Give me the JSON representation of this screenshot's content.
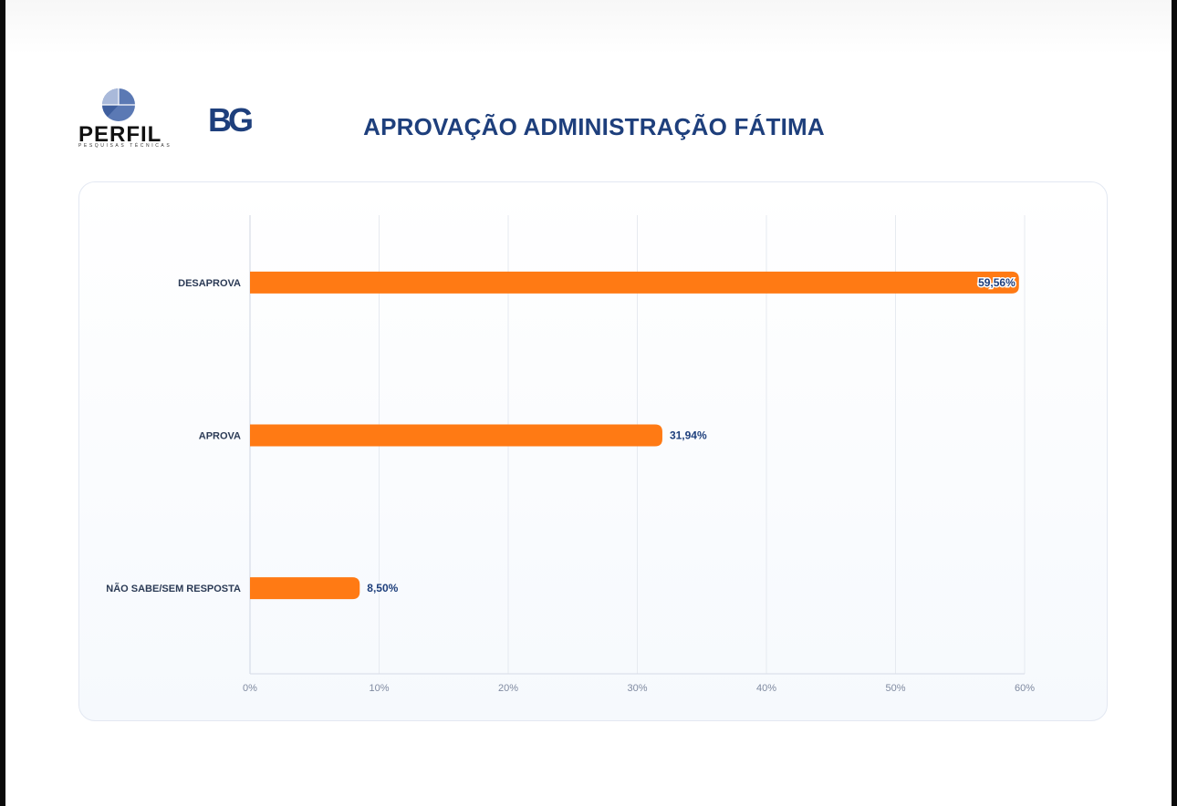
{
  "header": {
    "title": "APROVAÇÃO ADMINISTRAÇÃO FÁTIMA",
    "logo_perfil": {
      "name": "PERFIL",
      "tagline": "PESQUISAS TÉCNICAS"
    },
    "logo_bg": {
      "name": "BG"
    }
  },
  "colors": {
    "bar": "#ff7a14",
    "title": "#1e3f7c",
    "value_label": "#1e3f7c",
    "grid": "#e6eaf0"
  },
  "chart_data": {
    "type": "bar",
    "orientation": "horizontal",
    "title": "APROVAÇÃO ADMINISTRAÇÃO FÁTIMA",
    "categories": [
      "DESAPROVA",
      "APROVA",
      "NÃO SABE/SEM RESPOSTA"
    ],
    "values": [
      59.56,
      31.94,
      8.5
    ],
    "value_labels": [
      "59,56%",
      "31,94%",
      "8,50%"
    ],
    "xlim": [
      0,
      60
    ],
    "x_ticks": [
      "0%",
      "10%",
      "20%",
      "30%",
      "40%",
      "50%",
      "60%"
    ],
    "xlabel": "",
    "ylabel": "",
    "grid": true,
    "legend": "none"
  }
}
